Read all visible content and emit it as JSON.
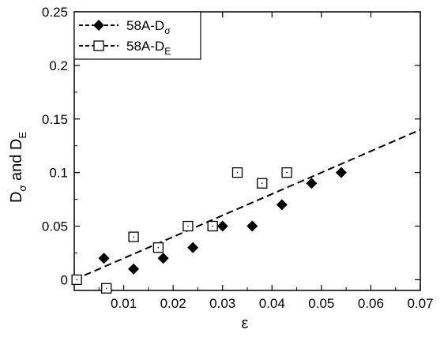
{
  "chart_data": {
    "type": "scatter",
    "ylabel": {
      "main": "D",
      "sub1": "σ",
      "mid": " and D",
      "sub2": "E"
    },
    "xlabel": "ε",
    "xlim": [
      0,
      0.07
    ],
    "ylim": [
      -0.01,
      0.25
    ],
    "x_ticks": [
      0.01,
      0.02,
      0.03,
      0.04,
      0.05,
      0.06,
      0.07
    ],
    "x_tick_labels": [
      "0.01",
      "0.02",
      "0.03",
      "0.04",
      "0.05",
      "0.06",
      "0.07"
    ],
    "y_ticks": [
      0,
      0.05,
      0.1,
      0.15,
      0.2,
      0.25
    ],
    "y_tick_labels": [
      "0",
      "0.05",
      "0.1",
      "0.15",
      "0.2",
      "0.25"
    ],
    "legend": {
      "position": "top-left",
      "items": [
        {
          "main": "58A-D",
          "sub": "σ",
          "marker": "diamond-filled"
        },
        {
          "main": "58A-D",
          "sub": "E",
          "marker": "square-open"
        }
      ]
    },
    "series": [
      {
        "name": "58A-Dσ",
        "marker": "diamond-filled",
        "points": [
          [
            0.006,
            0.02
          ],
          [
            0.012,
            0.01
          ],
          [
            0.018,
            0.02
          ],
          [
            0.024,
            0.03
          ],
          [
            0.03,
            0.05
          ],
          [
            0.036,
            0.05
          ],
          [
            0.042,
            0.07
          ],
          [
            0.048,
            0.09
          ],
          [
            0.054,
            0.1
          ]
        ]
      },
      {
        "name": "58A-DE",
        "marker": "square-open",
        "points": [
          [
            0.0005,
            0.0
          ],
          [
            0.0065,
            -0.008
          ],
          [
            0.012,
            0.04
          ],
          [
            0.017,
            0.03
          ],
          [
            0.023,
            0.05
          ],
          [
            0.028,
            0.05
          ],
          [
            0.033,
            0.1
          ],
          [
            0.038,
            0.09
          ],
          [
            0.043,
            0.1
          ]
        ]
      }
    ],
    "fit_line": {
      "style": "dashed",
      "points": [
        [
          0.0,
          0.0
        ],
        [
          0.07,
          0.14
        ]
      ]
    }
  }
}
